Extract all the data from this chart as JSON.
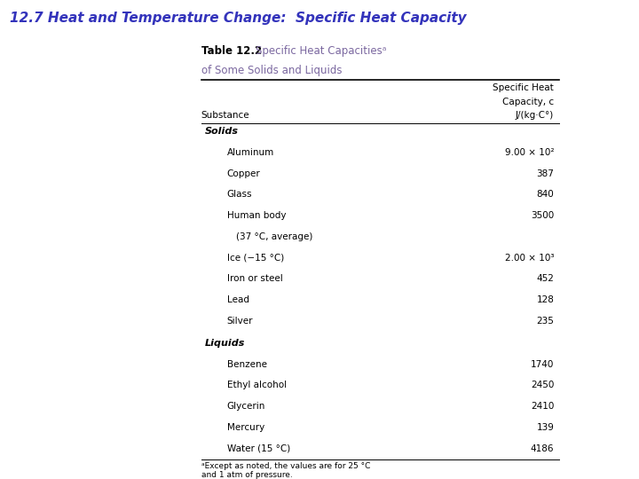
{
  "title": "12.7 Heat and Temperature Change:  Specific Heat Capacity",
  "table_title_bold": "Table 12.2",
  "table_title_desc": "Specific Heat Capacitiesᵃ",
  "table_subtitle": "of Some Solids and Liquids",
  "col1_header": "Substance",
  "col2_header_line1": "Specific Heat",
  "col2_header_line2": "Capacity, c",
  "col2_header_line3": "J/(kg·C°)",
  "solids_header": "Solids",
  "liquids_header": "Liquids",
  "solids": [
    [
      "Aluminum",
      "9.00 × 10²"
    ],
    [
      "Copper",
      "387"
    ],
    [
      "Glass",
      "840"
    ],
    [
      "Human body",
      "3500"
    ],
    [
      "(37 °C, average)",
      ""
    ],
    [
      "Ice (−15 °C)",
      "2.00 × 10³"
    ],
    [
      "Iron or steel",
      "452"
    ],
    [
      "Lead",
      "128"
    ],
    [
      "Silver",
      "235"
    ]
  ],
  "liquids": [
    [
      "Benzene",
      "1740"
    ],
    [
      "Ethyl alcohol",
      "2450"
    ],
    [
      "Glycerin",
      "2410"
    ],
    [
      "Mercury",
      "139"
    ],
    [
      "Water (15 °C)",
      "4186"
    ]
  ],
  "footnote": "ᵃExcept as noted, the values are for 25 °C\nand 1 atm of pressure.",
  "bg_color": "#FFFFFF",
  "header_color": "#7B68A0",
  "title_blue": "#3333BB"
}
